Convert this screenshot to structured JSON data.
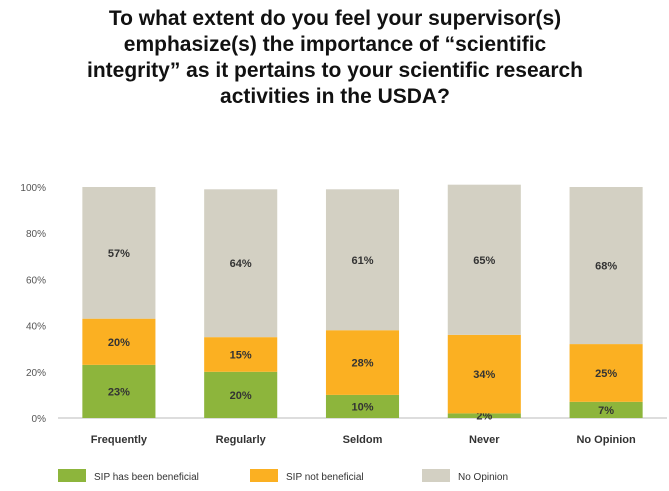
{
  "title_lines": [
    "To what extent do you feel your supervisor(s)",
    "emphasize(s) the importance of “scientific",
    "integrity” as it pertains to your scientific research",
    "activities in the USDA?"
  ],
  "chart_data": {
    "type": "bar",
    "stacked": true,
    "categories": [
      "Frequently",
      "Regularly",
      "Seldom",
      "Never",
      "No Opinion"
    ],
    "series": [
      {
        "name": "SIP has been beneficial",
        "color": "#8db53c",
        "values": [
          23,
          20,
          10,
          2,
          7
        ],
        "labels": [
          "23%",
          "20%",
          "10%",
          "2%",
          "7%"
        ]
      },
      {
        "name": "SIP not beneficial",
        "color": "#fbb022",
        "values": [
          20,
          15,
          28,
          34,
          25
        ],
        "labels": [
          "20%",
          "15%",
          "28%",
          "34%",
          "25%"
        ]
      },
      {
        "name": "No Opinion",
        "color": "#d3d0c3",
        "values": [
          57,
          64,
          61,
          65,
          68
        ],
        "labels": [
          "57%",
          "64%",
          "61%",
          "65%",
          "68%"
        ]
      }
    ],
    "yticks": [
      "0%",
      "20%",
      "40%",
      "60%",
      "80%",
      "100%"
    ],
    "ylim": [
      0,
      100
    ],
    "legend_position": "bottom",
    "grid": false
  }
}
